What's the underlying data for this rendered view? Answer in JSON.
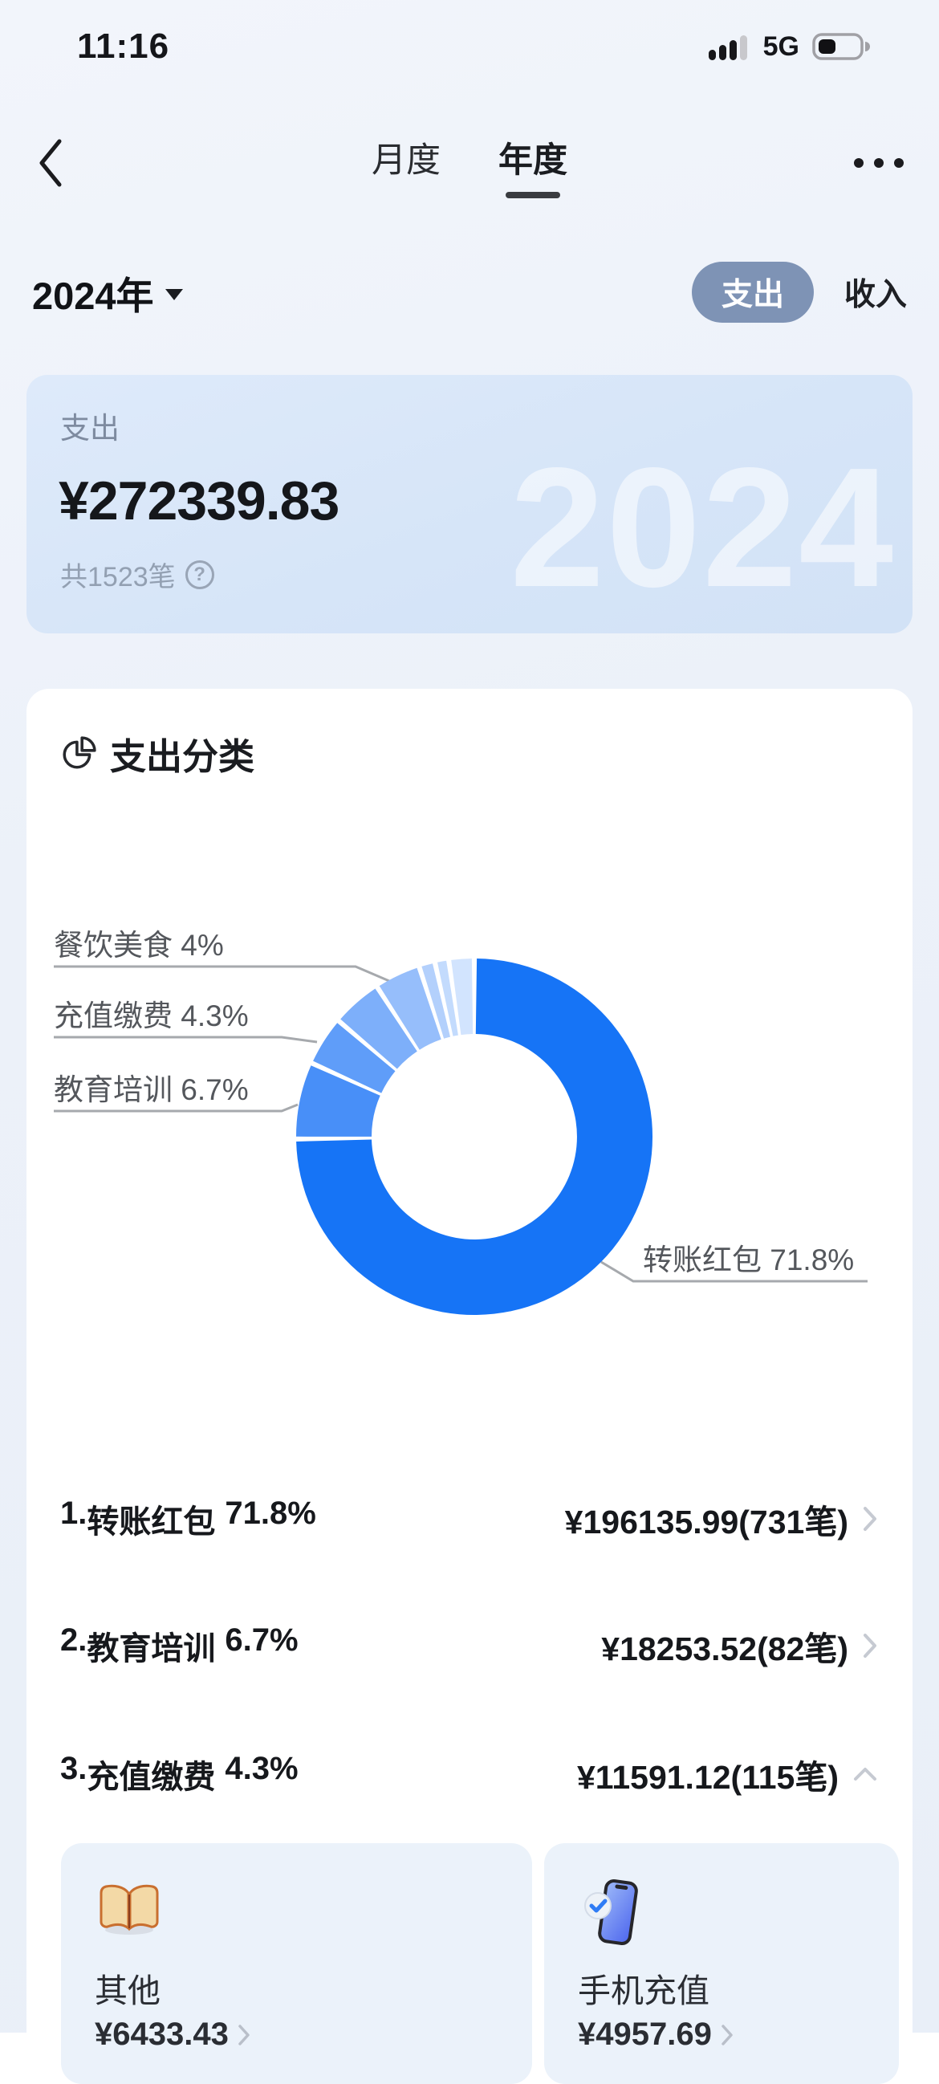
{
  "status_bar": {
    "time": "11:16",
    "network": "5G",
    "signal_icon": "cellular-signal-icon",
    "battery_icon": "battery-icon",
    "battery_fill_percent": 38
  },
  "nav": {
    "back_icon": "back-chevron-icon",
    "tabs": [
      {
        "label": "月度",
        "active": false
      },
      {
        "label": "年度",
        "active": true
      }
    ],
    "more_icon": "more-dots-icon"
  },
  "filter": {
    "year": "2024年",
    "dropdown_icon": "caret-down-icon",
    "toggle": [
      {
        "label": "支出",
        "active": true
      },
      {
        "label": "收入",
        "active": false
      }
    ]
  },
  "summary": {
    "label": "支出",
    "amount": "¥272339.83",
    "count": "共1523笔",
    "help_icon": "question-circle-icon",
    "watermark": "2024"
  },
  "section": {
    "icon": "pie-chart-icon",
    "title": "支出分类"
  },
  "chart_data": {
    "type": "pie",
    "donut": true,
    "title": "支出分类",
    "unit": "%",
    "legend": "none",
    "start_angle_deg": 0,
    "clockwise": true,
    "series": [
      {
        "name": "转账红包",
        "value": 71.8,
        "color": "#1674F6",
        "label_visible": true
      },
      {
        "name": "教育培训",
        "value": 6.7,
        "color": "#488FF8",
        "label_visible": true
      },
      {
        "name": "充值缴费",
        "value": 4.3,
        "color": "#5F9DF9",
        "label_visible": true
      },
      {
        "name": "",
        "value": 4.4,
        "color": "#7DAFFA",
        "label_visible": false,
        "estimated": true
      },
      {
        "name": "餐饮美食",
        "value": 4.0,
        "color": "#96BEFB",
        "label_visible": true
      },
      {
        "name": "",
        "value": 1.4,
        "color": "#B3D0FC",
        "label_visible": false,
        "estimated": true
      },
      {
        "name": "",
        "value": 1.2,
        "color": "#C3DBFD",
        "label_visible": false,
        "estimated": true
      },
      {
        "name": "",
        "value": 2.2,
        "color": "#D2E4FE",
        "label_visible": false,
        "estimated": true
      }
    ],
    "callouts": [
      {
        "text": "餐饮美食 4%"
      },
      {
        "text": "充值缴费 4.3%"
      },
      {
        "text": "教育培训 6.7%"
      },
      {
        "text": "转账红包 71.8%"
      }
    ]
  },
  "list": {
    "rows": [
      {
        "rank": "1.",
        "name": "转账红包",
        "percent": "71.8%",
        "amount": "¥196135.99(731笔)",
        "expander": "collapsed"
      },
      {
        "rank": "2.",
        "name": "教育培训",
        "percent": "6.7%",
        "amount": "¥18253.52(82笔)",
        "expander": "collapsed"
      },
      {
        "rank": "3.",
        "name": "充值缴费",
        "percent": "4.3%",
        "amount": "¥11591.12(115笔)",
        "expander": "expanded"
      }
    ]
  },
  "subcards": [
    {
      "icon": "open-book-icon",
      "name": "其他",
      "amount": "¥6433.43"
    },
    {
      "icon": "phone-check-icon",
      "name": "手机充值",
      "amount": "¥4957.69"
    }
  ],
  "colors": {
    "accent_blue": "#1674F6",
    "pill_bg": "#7E93B5",
    "summary_card_bg": "#D6E5F8",
    "subcard_bg": "#EBF2FA",
    "page_bg": "#ECF1F9",
    "leader_line": "#A6A9AD"
  }
}
